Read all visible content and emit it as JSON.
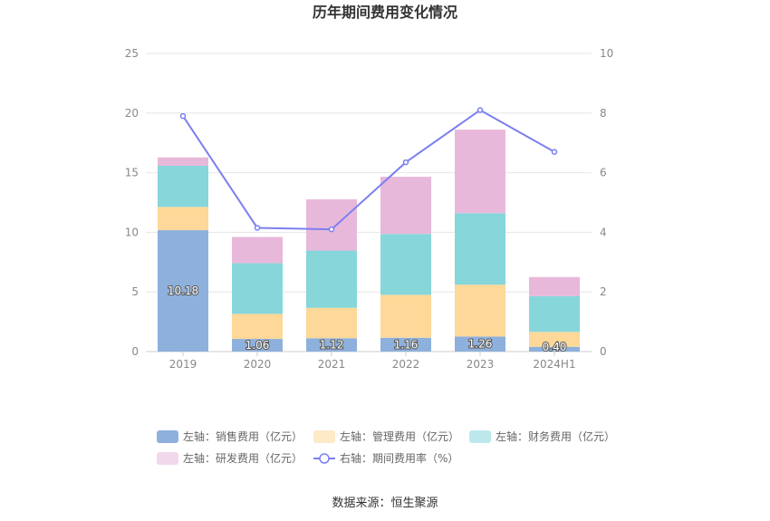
{
  "chart_data": {
    "type": "bar",
    "title": "历年期间费用变化情况",
    "categories": [
      "2019",
      "2020",
      "2021",
      "2022",
      "2023",
      "2024H1"
    ],
    "stacked": true,
    "left_axis": {
      "ylim": [
        0,
        25
      ],
      "ticks": [
        "0",
        "5",
        "10",
        "15",
        "20",
        "25"
      ]
    },
    "right_axis": {
      "ylim": [
        0,
        10
      ],
      "ticks": [
        "0",
        "2",
        "4",
        "6",
        "8",
        "10"
      ]
    },
    "series": [
      {
        "name": "左轴：销售费用（亿元）",
        "axis": "left",
        "type": "bar",
        "color": "#8eb0dc",
        "values": [
          10.18,
          1.06,
          1.12,
          1.16,
          1.26,
          0.4
        ],
        "labels": [
          "10.18",
          "1.06",
          "1.12",
          "1.16",
          "1.26",
          "0.40"
        ]
      },
      {
        "name": "左轴：管理费用（亿元）",
        "axis": "left",
        "type": "bar",
        "color": "#fdd898",
        "values": [
          1.95,
          2.1,
          2.55,
          3.6,
          4.35,
          1.25
        ]
      },
      {
        "name": "左轴：财务费用（亿元）",
        "axis": "left",
        "type": "bar",
        "color": "#86d6da",
        "values": [
          3.45,
          4.25,
          4.8,
          5.1,
          6.0,
          3.0
        ]
      },
      {
        "name": "左轴：研发费用（亿元）",
        "axis": "left",
        "type": "bar",
        "color": "#e8b8da",
        "values": [
          0.7,
          2.2,
          4.3,
          4.8,
          7.0,
          1.6
        ]
      },
      {
        "name": "右轴：期间费用率（%）",
        "axis": "right",
        "type": "line",
        "color": "#7b7ff0",
        "values": [
          7.9,
          4.15,
          4.1,
          6.35,
          8.1,
          6.7
        ]
      }
    ],
    "legend_position": "bottom"
  },
  "source": "数据来源：恒生聚源"
}
